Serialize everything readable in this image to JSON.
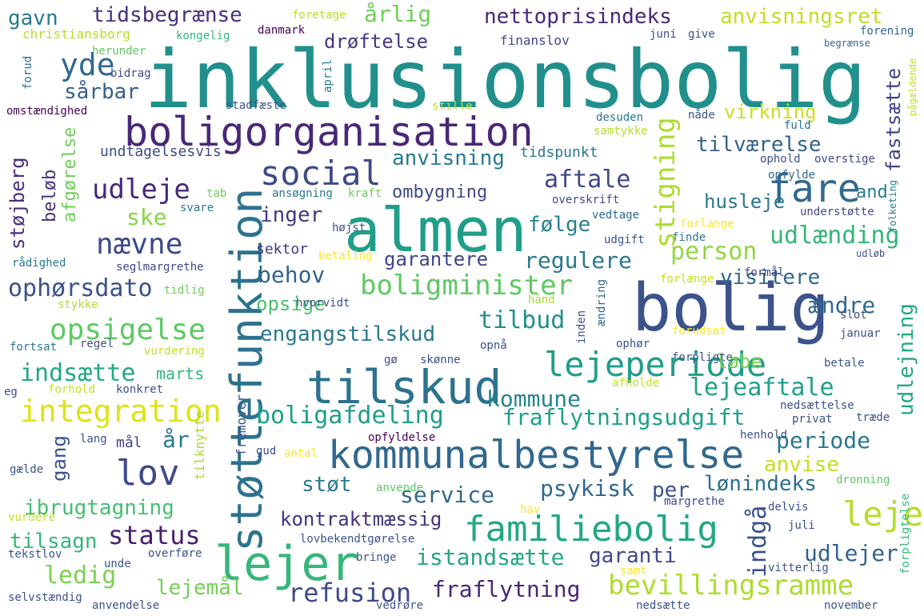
{
  "words": [
    {
      "text": "inklusionsbolig",
      "color": "#21908c"
    },
    {
      "text": "boligorganisation",
      "color": "#482878"
    },
    {
      "text": "almen",
      "color": "#1f9e89"
    },
    {
      "text": "bolig",
      "color": "#3b528b"
    },
    {
      "text": "støttefunktion",
      "color": "#2c728e"
    },
    {
      "text": "kommunalbestyrelse",
      "color": "#31688e"
    },
    {
      "text": "tilskud",
      "color": "#2c728e"
    },
    {
      "text": "lejer",
      "color": "#35b779"
    },
    {
      "text": "familiebolig",
      "color": "#22a884"
    },
    {
      "text": "lejeperiode",
      "color": "#1f9e89"
    },
    {
      "text": "integration",
      "color": "#dde318"
    },
    {
      "text": "social",
      "color": "#3e4989"
    },
    {
      "text": "fare",
      "color": "#31688e"
    },
    {
      "text": "lov",
      "color": "#3e4a89"
    },
    {
      "text": "nævne",
      "color": "#3e4989"
    },
    {
      "text": "stigning",
      "color": "#addc30"
    },
    {
      "text": "udleje",
      "color": "#482878"
    },
    {
      "text": "yde",
      "color": "#31688e"
    },
    {
      "text": "opsigelse",
      "color": "#5ec962"
    },
    {
      "text": "boligminister",
      "color": "#5ec962"
    },
    {
      "text": "indsætte",
      "color": "#22a884"
    },
    {
      "text": "bevillingsramme",
      "color": "#addc30"
    },
    {
      "text": "refusion",
      "color": "#3e4989"
    },
    {
      "text": "leje",
      "color": "#b5de2b"
    },
    {
      "text": "nettoprisindeks",
      "color": "#482878"
    },
    {
      "text": "tidsbegrænse",
      "color": "#46327e"
    },
    {
      "text": "anvisningsret",
      "color": "#bddf26"
    },
    {
      "text": "årlig",
      "color": "#6ece58"
    },
    {
      "text": "drøftelse",
      "color": "#443983"
    },
    {
      "text": "gavn",
      "color": "#2a788e"
    },
    {
      "text": "sårbar",
      "color": "#35608d"
    },
    {
      "text": "anvisning",
      "color": "#287c8e"
    },
    {
      "text": "aftale",
      "color": "#3e4989"
    },
    {
      "text": "tilværelse",
      "color": "#33638d"
    },
    {
      "text": "virkning",
      "color": "#c8e020"
    },
    {
      "text": "fastsætte",
      "color": "#414487"
    },
    {
      "text": "ombygning",
      "color": "#3e4989"
    },
    {
      "text": "husleje",
      "color": "#2a788e"
    },
    {
      "text": "and",
      "color": "#287d8e"
    },
    {
      "text": "udlænding",
      "color": "#35b779"
    },
    {
      "text": "ske",
      "color": "#86d549"
    },
    {
      "text": "inger",
      "color": "#443a83"
    },
    {
      "text": "følge",
      "color": "#26828e"
    },
    {
      "text": "person",
      "color": "#90d743"
    },
    {
      "text": "behov",
      "color": "#33638d"
    },
    {
      "text": "garantere",
      "color": "#404588"
    },
    {
      "text": "regulere",
      "color": "#2a788e"
    },
    {
      "text": "ophørsdato",
      "color": "#3b528b"
    },
    {
      "text": "visitere",
      "color": "#31688e"
    },
    {
      "text": "opsige",
      "color": "#4ac16d"
    },
    {
      "text": "tilbud",
      "color": "#21918c"
    },
    {
      "text": "engangstilskud",
      "color": "#2a788e"
    },
    {
      "text": "ændre",
      "color": "#31688e"
    },
    {
      "text": "løbe",
      "color": "#7ad151"
    },
    {
      "text": "kommune",
      "color": "#25848e"
    },
    {
      "text": "lejeaftale",
      "color": "#1fa188"
    },
    {
      "text": "boligafdeling",
      "color": "#1f9e89"
    },
    {
      "text": "fraflytningsudgift",
      "color": "#1fa187"
    },
    {
      "text": "udlejning",
      "color": "#22a884"
    },
    {
      "text": "periode",
      "color": "#2a788e"
    },
    {
      "text": "anvise",
      "color": "#c2df23"
    },
    {
      "text": "støt",
      "color": "#2a788e"
    },
    {
      "text": "lønindeks",
      "color": "#2d708e"
    },
    {
      "text": "service",
      "color": "#31688e"
    },
    {
      "text": "psykisk",
      "color": "#31688e"
    },
    {
      "text": "per",
      "color": "#3b528b"
    },
    {
      "text": "ibrugtagning",
      "color": "#44bf70"
    },
    {
      "text": "kontraktmæssig",
      "color": "#46327e"
    },
    {
      "text": "status",
      "color": "#482071"
    },
    {
      "text": "tilsagn",
      "color": "#35b779"
    },
    {
      "text": "istandsætte",
      "color": "#22a884"
    },
    {
      "text": "garanti",
      "color": "#3e4989"
    },
    {
      "text": "udlejer",
      "color": "#33638d"
    },
    {
      "text": "ledig",
      "color": "#7ad151"
    },
    {
      "text": "lejemål",
      "color": "#73d056"
    },
    {
      "text": "fraflytning",
      "color": "#482878"
    },
    {
      "text": "indgå",
      "color": "#3b528b"
    },
    {
      "text": "gang",
      "color": "#3b528b"
    },
    {
      "text": "år",
      "color": "#2a788e"
    },
    {
      "text": "mål",
      "color": "#414487"
    },
    {
      "text": "marts",
      "color": "#35b779"
    },
    {
      "text": "støjberg",
      "color": "#472d7b"
    },
    {
      "text": "beløb",
      "color": "#46337f"
    },
    {
      "text": "afgørelse",
      "color": "#6ece58"
    },
    {
      "text": "undtagelsesvis",
      "color": "#3e4989"
    },
    {
      "text": "tidspunkt",
      "color": "#2a788e"
    },
    {
      "text": "sektor",
      "color": "#443983"
    },
    {
      "text": "fremover",
      "color": "#3b528b"
    },
    {
      "text": "tilknytte",
      "color": "#a8db34"
    },
    {
      "text": "christiansborg",
      "color": "#b5de2b"
    },
    {
      "text": "foretage",
      "color": "#b5de2b"
    },
    {
      "text": "danmark",
      "color": "#440154"
    },
    {
      "text": "kongelig",
      "color": "#35b779"
    },
    {
      "text": "herunder",
      "color": "#5ec962"
    },
    {
      "text": "forud",
      "color": "#2e6e8e"
    },
    {
      "text": "bidrag",
      "color": "#3e4989"
    },
    {
      "text": "omstændighed",
      "color": "#440154"
    },
    {
      "text": "stadfæste",
      "color": "#3b528b"
    },
    {
      "text": "april",
      "color": "#2a788e"
    },
    {
      "text": "stille",
      "color": "#c2df23"
    },
    {
      "text": "finanslov",
      "color": "#3e4989"
    },
    {
      "text": "juni",
      "color": "#3b528b"
    },
    {
      "text": "give",
      "color": "#3b528b"
    },
    {
      "text": "forening",
      "color": "#31688e"
    },
    {
      "text": "begrænse",
      "color": "#34618d"
    },
    {
      "text": "pågældende",
      "color": "#bddf26"
    },
    {
      "text": "nåde",
      "color": "#3b528b"
    },
    {
      "text": "desuden",
      "color": "#2a788e"
    },
    {
      "text": "samtykke",
      "color": "#b5de2b"
    },
    {
      "text": "fuld",
      "color": "#2a788e"
    },
    {
      "text": "ophold",
      "color": "#3b528b"
    },
    {
      "text": "overstige",
      "color": "#3e4989"
    },
    {
      "text": "opfylde",
      "color": "#31688e"
    },
    {
      "text": "tab",
      "color": "#6ece58"
    },
    {
      "text": "ansøgning",
      "color": "#2a788e"
    },
    {
      "text": "kraft",
      "color": "#6ece58"
    },
    {
      "text": "svare",
      "color": "#2a788e"
    },
    {
      "text": "overskrift",
      "color": "#3e4989"
    },
    {
      "text": "understøtte",
      "color": "#3e4989"
    },
    {
      "text": "folketing",
      "color": "#2a788e"
    },
    {
      "text": "vedtage",
      "color": "#31688e"
    },
    {
      "text": "højst",
      "color": "#3b528b"
    },
    {
      "text": "forlange",
      "color": "#fde725"
    },
    {
      "text": "finde",
      "color": "#2a788e"
    },
    {
      "text": "rådighed",
      "color": "#2a788e"
    },
    {
      "text": "seglmargrethe",
      "color": "#3e4989"
    },
    {
      "text": "betaling",
      "color": "#fde725"
    },
    {
      "text": "udgift",
      "color": "#3b528b"
    },
    {
      "text": "formål",
      "color": "#3e4989"
    },
    {
      "text": "udløb",
      "color": "#3b528b"
    },
    {
      "text": "forlænge",
      "color": "#c8e020"
    },
    {
      "text": "tidlig",
      "color": "#6ece58"
    },
    {
      "text": "hvorvidt",
      "color": "#3b528b"
    },
    {
      "text": "stykke",
      "color": "#addc30"
    },
    {
      "text": "hånd",
      "color": "#addc30"
    },
    {
      "text": "ændring",
      "color": "#31688e"
    },
    {
      "text": "slot",
      "color": "#3e4989"
    },
    {
      "text": "forudsat",
      "color": "#fde725"
    },
    {
      "text": "januar",
      "color": "#3b528b"
    },
    {
      "text": "inden",
      "color": "#3b528b"
    },
    {
      "text": "ophør",
      "color": "#3b528b"
    },
    {
      "text": "fortsat",
      "color": "#2a788e"
    },
    {
      "text": "regel",
      "color": "#3b528b"
    },
    {
      "text": "vurdering",
      "color": "#c2df23"
    },
    {
      "text": "opnå",
      "color": "#3b528b"
    },
    {
      "text": "gø",
      "color": "#3b528b"
    },
    {
      "text": "skønne",
      "color": "#3b528b"
    },
    {
      "text": "forpligte",
      "color": "#3b528b"
    },
    {
      "text": "betale",
      "color": "#3b528b"
    },
    {
      "text": "eg",
      "color": "#3b528b"
    },
    {
      "text": "forhold",
      "color": "#c2df23"
    },
    {
      "text": "konkret",
      "color": "#3b528b"
    },
    {
      "text": "afholde",
      "color": "#c2df23"
    },
    {
      "text": "nedsættelse",
      "color": "#3b528b"
    },
    {
      "text": "privat",
      "color": "#3b528b"
    },
    {
      "text": "træde",
      "color": "#3b528b"
    },
    {
      "text": "opfyldelse",
      "color": "#440154"
    },
    {
      "text": "henhold",
      "color": "#3b528b"
    },
    {
      "text": "lang",
      "color": "#3b528b"
    },
    {
      "text": "gud",
      "color": "#3b528b"
    },
    {
      "text": "antal",
      "color": "#fde725"
    },
    {
      "text": "gælde",
      "color": "#3b528b"
    },
    {
      "text": "anvende",
      "color": "#5ec962"
    },
    {
      "text": "dronning",
      "color": "#5ec962"
    },
    {
      "text": "hav",
      "color": "#fde725"
    },
    {
      "text": "margrethe",
      "color": "#3e4989"
    },
    {
      "text": "delvis",
      "color": "#3b528b"
    },
    {
      "text": "forpligtelse",
      "color": "#35b779"
    },
    {
      "text": "vurdere",
      "color": "#c2df23"
    },
    {
      "text": "juli",
      "color": "#3b528b"
    },
    {
      "text": "lovbekendtgørelse",
      "color": "#3b528b"
    },
    {
      "text": "tekstlov",
      "color": "#3b528b"
    },
    {
      "text": "bringe",
      "color": "#3b528b"
    },
    {
      "text": "unde",
      "color": "#3b528b"
    },
    {
      "text": "overføre",
      "color": "#3b528b"
    },
    {
      "text": "samt",
      "color": "#fde725"
    },
    {
      "text": "vitterlig",
      "color": "#3b528b"
    },
    {
      "text": "selvstændig",
      "color": "#3b528b"
    },
    {
      "text": "anvendelse",
      "color": "#3b528b"
    },
    {
      "text": "vedrøre",
      "color": "#3b528b"
    },
    {
      "text": "nedsætte",
      "color": "#3b528b"
    },
    {
      "text": "november",
      "color": "#3b528b"
    }
  ]
}
